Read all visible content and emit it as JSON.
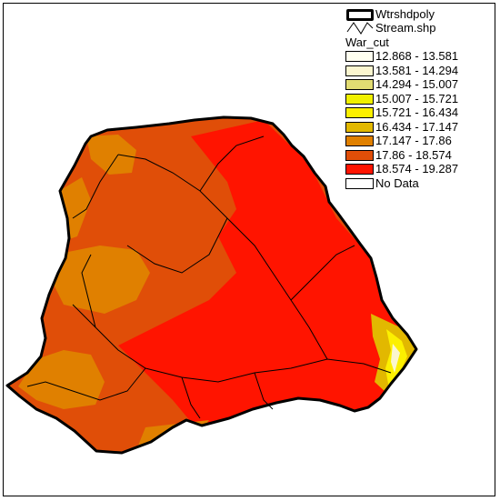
{
  "legend": {
    "watershed_label": "Wtrshdpoly",
    "stream_label": "Stream.shp",
    "raster_title": "War_cut",
    "classes": [
      {
        "label": "12.868 - 13.581",
        "color": "#fffff0"
      },
      {
        "label": "13.581 - 14.294",
        "color": "#fbf6cf"
      },
      {
        "label": "14.294 - 15.007",
        "color": "#e2dc72"
      },
      {
        "label": "15.007 - 15.721",
        "color": "#f0f000"
      },
      {
        "label": "15.721 - 16.434",
        "color": "#fcf000"
      },
      {
        "label": "16.434 - 17.147",
        "color": "#e2b800"
      },
      {
        "label": "17.147 - 17.86",
        "color": "#e08000"
      },
      {
        "label": "17.86 - 18.574",
        "color": "#e04e08"
      },
      {
        "label": "18.574 - 19.287",
        "color": "#ff1400"
      },
      {
        "label": "No Data",
        "color": "#ffffff"
      }
    ]
  },
  "map": {
    "background_color": "#ffffff",
    "watershed_outline_color": "#000000",
    "stream_color": "#000000"
  }
}
